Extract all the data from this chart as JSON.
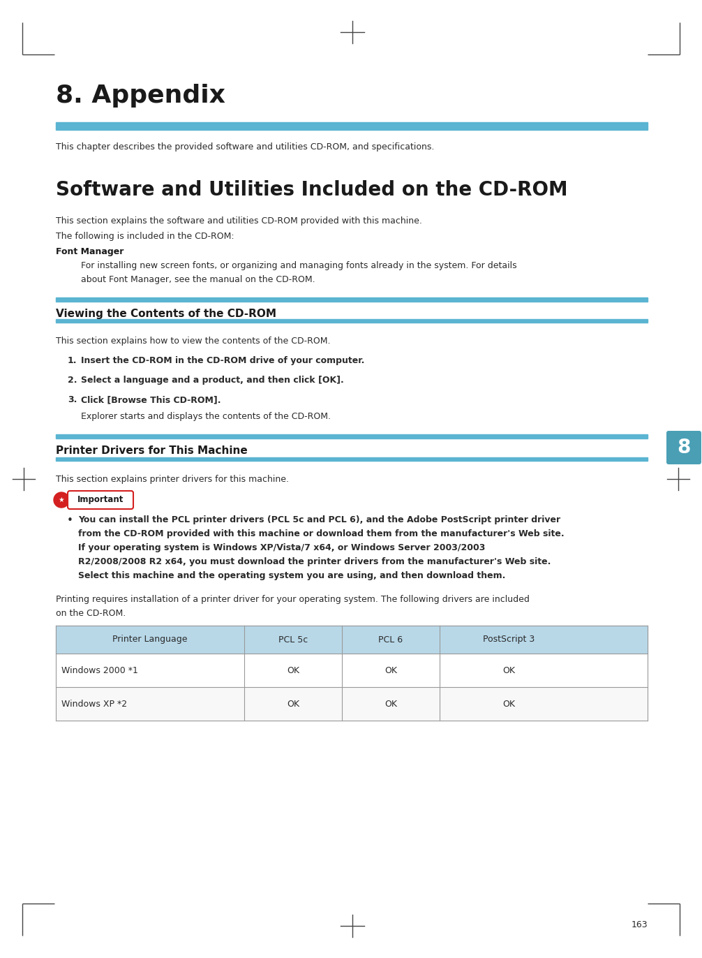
{
  "bg_color": "#ffffff",
  "blue_color": "#5ab4d2",
  "heading_color": "#1a1a1a",
  "text_color": "#2a2a2a",
  "chapter_title": "8. Appendix",
  "chapter_subtitle": "This chapter describes the provided software and utilities CD-ROM, and specifications.",
  "section1_title": "Software and Utilities Included on the CD-ROM",
  "section1_intro": "This section explains the software and utilities CD-ROM provided with this machine.",
  "section1_line2": "The following is included in the CD-ROM:",
  "font_manager_bold": "Font Manager",
  "font_manager_line1": "For installing new screen fonts, or organizing and managing fonts already in the system. For details",
  "font_manager_line2": "about Font Manager, see the manual on the CD-ROM.",
  "section2_title": "Viewing the Contents of the CD-ROM",
  "section2_intro": "This section explains how to view the contents of the CD-ROM.",
  "step1": "Insert the CD-ROM in the CD-ROM drive of your computer.",
  "step2": "Select a language and a product, and then click [OK].",
  "step3": "Click [Browse This CD-ROM].",
  "step3_sub": "Explorer starts and displays the contents of the CD-ROM.",
  "section3_title": "Printer Drivers for This Machine",
  "section3_intro": "This section explains printer drivers for this machine.",
  "imp_label": "Important",
  "imp_line1": "You can install the PCL printer drivers (PCL 5c and PCL 6), and the Adobe PostScript printer driver",
  "imp_line2": "from the CD-ROM provided with this machine or download them from the manufacturer's Web site.",
  "imp_line3": "If your operating system is Windows XP/Vista/7 x64, or Windows Server 2003/2003",
  "imp_line4": "R2/2008/2008 R2 x64, you must download the printer drivers from the manufacturer's Web site.",
  "imp_line5": "Select this machine and the operating system you are using, and then download them.",
  "print_note1": "Printing requires installation of a printer driver for your operating system. The following drivers are included",
  "print_note2": "on the CD-ROM.",
  "table_header": [
    "Printer Language",
    "PCL 5c",
    "PCL 6",
    "PostScript 3"
  ],
  "table_rows": [
    [
      "Windows 2000 *1",
      "OK",
      "OK",
      "OK"
    ],
    [
      "Windows XP *2",
      "OK",
      "OK",
      "OK"
    ]
  ],
  "table_header_bg": "#b8d8e8",
  "page_number": "163",
  "tab_number": "8",
  "tab_color": "#4a9fb5",
  "mark_color": "#444444"
}
